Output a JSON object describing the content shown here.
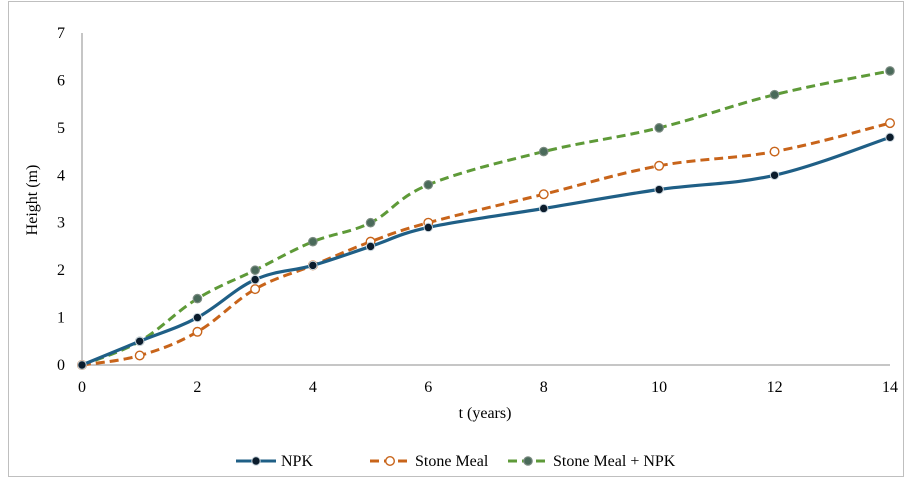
{
  "chart_data": {
    "type": "line",
    "title": "",
    "xlabel": "t (years)",
    "ylabel": "Height (m)",
    "xlim": [
      0,
      14
    ],
    "ylim": [
      0,
      7
    ],
    "xticks": [
      "0",
      "2",
      "4",
      "6",
      "8",
      "10",
      "12",
      "14"
    ],
    "yticks": [
      "0",
      "1",
      "2",
      "3",
      "4",
      "5",
      "6",
      "7"
    ],
    "grid": false,
    "legend_position": "bottom",
    "series": [
      {
        "name": "NPK",
        "color": "#1f5f86",
        "line_style": "solid",
        "marker": "filled-circle",
        "x": [
          0,
          1,
          2,
          3,
          4,
          5,
          6,
          8,
          10,
          12,
          14
        ],
        "y": [
          0,
          0.5,
          1.0,
          1.8,
          2.1,
          2.5,
          2.9,
          3.3,
          3.7,
          4.0,
          4.8
        ]
      },
      {
        "name": "Stone Meal",
        "color": "#c8641a",
        "line_style": "dashed",
        "marker": "open-circle",
        "x": [
          0,
          1,
          2,
          3,
          4,
          5,
          6,
          8,
          10,
          12,
          14
        ],
        "y": [
          0,
          0.2,
          0.7,
          1.6,
          2.1,
          2.6,
          3.0,
          3.6,
          4.2,
          4.5,
          5.1
        ]
      },
      {
        "name": "Stone Meal + NPK",
        "color": "#5e9a38",
        "line_style": "dashed",
        "marker": "filled-circle-gray",
        "x": [
          0,
          1,
          2,
          3,
          4,
          5,
          6,
          8,
          10,
          12,
          14
        ],
        "y": [
          0,
          0.5,
          1.4,
          2.0,
          2.6,
          3.0,
          3.8,
          4.5,
          5.0,
          5.7,
          6.2
        ]
      }
    ]
  }
}
